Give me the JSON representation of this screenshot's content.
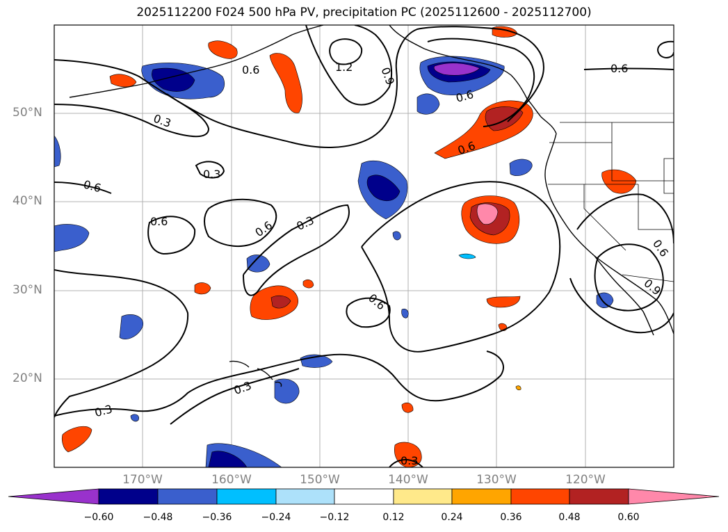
{
  "title": "2025112200 F024 500 hPa PV, precipitation PC (2025112600 - 2025112700)",
  "map": {
    "region": "North Pacific / West Coast of North America",
    "lat_ticks": [
      "50°N",
      "40°N",
      "30°N",
      "20°N"
    ],
    "lon_ticks": [
      "170°W",
      "160°W",
      "150°W",
      "140°W",
      "130°W",
      "120°W"
    ],
    "contour_labels": [
      "1.2",
      "0.9",
      "0.6",
      "0.3",
      "0.6",
      "0.6",
      "0.6",
      "0.3",
      "0.6",
      "0.3",
      "0.6",
      "0.6",
      "0.9",
      "0.6",
      "0.3",
      "0.3",
      "0.3",
      "0.6"
    ]
  },
  "colorbar": {
    "ticks": [
      "−0.60",
      "−0.48",
      "−0.36",
      "−0.24",
      "−0.12",
      "0.12",
      "0.24",
      "0.36",
      "0.48",
      "0.60"
    ],
    "colors": [
      "#9932cc",
      "#00008b",
      "#3a5fcd",
      "#00bfff",
      "#ade1fa",
      "#ffffff",
      "#ffe98a",
      "#ffa500",
      "#ff4500",
      "#b22222",
      "#ff88aa"
    ]
  }
}
